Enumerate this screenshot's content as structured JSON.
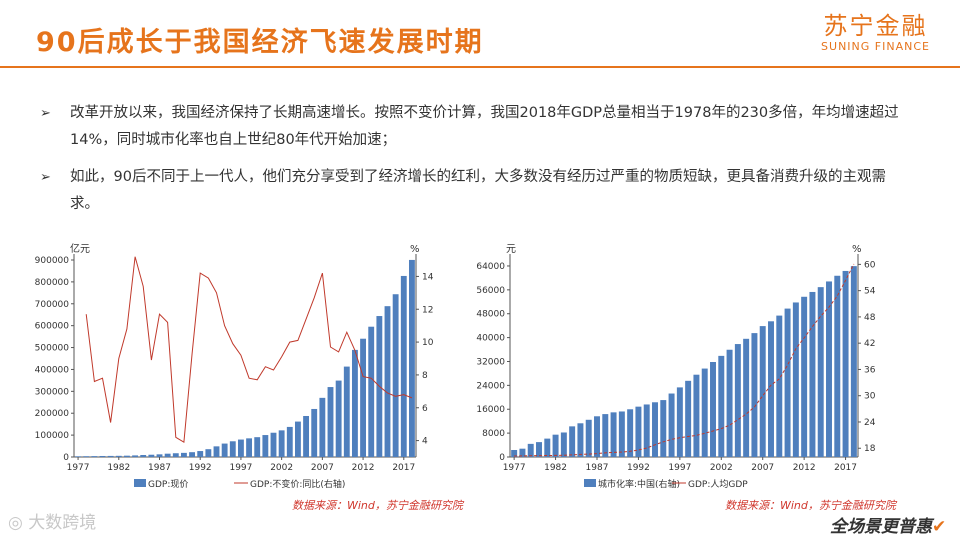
{
  "header": {
    "title": "90后成长于我国经济飞速发展时期",
    "logo_cn": "苏宁金融",
    "logo_en": "SUNING FINANCE"
  },
  "bullets": [
    {
      "marker": "➢",
      "text": "改革开放以来，我国经济保持了长期高速增长。按照不变价计算，我国2018年GDP总量相当于1978年的230多倍，年均增速超过14%，同时城市化率也自上世纪80年代开始加速；"
    },
    {
      "marker": "➢",
      "text": "如此，90后不同于上一代人，他们充分享受到了经济增长的红利，大多数没有经历过严重的物质短缺，更具备消费升级的主观需求。"
    }
  ],
  "colors": {
    "accent": "#e6741c",
    "bar": "#4f7fbd",
    "line": "#c0392b",
    "source": "#d0372d"
  },
  "chart_data": [
    {
      "type": "bar",
      "y_unit_left": "亿元",
      "y_unit_right": "%",
      "ylim_left": [
        0,
        900000
      ],
      "yticks_left": [
        0,
        100000,
        200000,
        300000,
        400000,
        500000,
        600000,
        700000,
        800000,
        900000
      ],
      "ylim_right": [
        3,
        15
      ],
      "yticks_right": [
        4,
        6,
        8,
        10,
        12,
        14
      ],
      "x": [
        1977,
        1978,
        1979,
        1980,
        1981,
        1982,
        1983,
        1984,
        1985,
        1986,
        1987,
        1988,
        1989,
        1990,
        1991,
        1992,
        1993,
        1994,
        1995,
        1996,
        1997,
        1998,
        1999,
        2000,
        2001,
        2002,
        2003,
        2004,
        2005,
        2006,
        2007,
        2008,
        2009,
        2010,
        2011,
        2012,
        2013,
        2014,
        2015,
        2016,
        2017,
        2018
      ],
      "xtick_labels": [
        "1977",
        "1982",
        "1987",
        "1992",
        "1997",
        "2002",
        "2007",
        "2012",
        "2017"
      ],
      "series": [
        {
          "name": "GDP:现价",
          "kind": "bar",
          "axis": "left",
          "values": [
            3250,
            3679,
            4101,
            4588,
            4936,
            5373,
            6021,
            7279,
            9099,
            10376,
            12175,
            15180,
            17180,
            18873,
            22006,
            27195,
            35673,
            48638,
            61340,
            71814,
            79715,
            85196,
            90564,
            100280,
            110863,
            121717,
            137422,
            161840,
            187319,
            219439,
            270232,
            319516,
            349081,
            413030,
            489301,
            540367,
            595244,
            643974,
            689052,
            743586,
            827122,
            900310
          ]
        },
        {
          "name": "GDP:不变价:同比(右轴)",
          "kind": "line",
          "axis": "right",
          "values": [
            null,
            11.7,
            7.6,
            7.8,
            5.1,
            9.0,
            10.8,
            15.2,
            13.4,
            8.9,
            11.7,
            11.2,
            4.2,
            3.9,
            9.3,
            14.2,
            13.9,
            13.0,
            11.0,
            9.9,
            9.2,
            7.8,
            7.7,
            8.5,
            8.3,
            9.1,
            10.0,
            10.1,
            11.4,
            12.7,
            14.2,
            9.7,
            9.4,
            10.6,
            9.5,
            7.9,
            7.8,
            7.3,
            6.9,
            6.7,
            6.8,
            6.6
          ]
        }
      ],
      "source": "数据来源：Wind，苏宁金融研究院"
    },
    {
      "type": "bar",
      "y_unit_left": "元",
      "y_unit_right": "%",
      "ylim_left": [
        0,
        66000
      ],
      "yticks_left": [
        0,
        8000,
        16000,
        24000,
        32000,
        40000,
        48000,
        56000,
        64000
      ],
      "ylim_right": [
        16,
        61
      ],
      "yticks_right": [
        18,
        24,
        30,
        36,
        42,
        48,
        54,
        60
      ],
      "x": [
        1977,
        1978,
        1979,
        1980,
        1981,
        1982,
        1983,
        1984,
        1985,
        1986,
        1987,
        1988,
        1989,
        1990,
        1991,
        1992,
        1993,
        1994,
        1995,
        1996,
        1997,
        1998,
        1999,
        2000,
        2001,
        2002,
        2003,
        2004,
        2005,
        2006,
        2007,
        2008,
        2009,
        2010,
        2011,
        2012,
        2013,
        2014,
        2015,
        2016,
        2017,
        2018
      ],
      "xtick_labels": [
        "1977",
        "1982",
        "1987",
        "1992",
        "1997",
        "2002",
        "2007",
        "2012",
        "2017"
      ],
      "series": [
        {
          "name": "城市化率:中国(右轴)",
          "kind": "bar",
          "axis": "right",
          "values": [
            17.6,
            17.9,
            19.0,
            19.4,
            20.2,
            21.1,
            21.6,
            23.0,
            23.7,
            24.5,
            25.3,
            25.8,
            26.2,
            26.4,
            26.9,
            27.5,
            28.0,
            28.5,
            29.0,
            30.5,
            31.9,
            33.4,
            34.8,
            36.2,
            37.7,
            39.1,
            40.5,
            41.8,
            43.0,
            44.3,
            45.9,
            47.0,
            48.3,
            49.9,
            51.3,
            52.6,
            53.7,
            54.8,
            56.1,
            57.4,
            58.5,
            59.6
          ]
        },
        {
          "name": "GDP:人均GDP",
          "kind": "line",
          "axis": "left",
          "values": [
            339,
            385,
            423,
            468,
            497,
            533,
            588,
            702,
            866,
            973,
            1123,
            1378,
            1536,
            1663,
            1912,
            2334,
            3027,
            4081,
            5091,
            5898,
            6481,
            6860,
            7229,
            7942,
            8717,
            9506,
            10666,
            12487,
            14368,
            16738,
            20494,
            24100,
            26180,
            30808,
            36302,
            39874,
            43684,
            47173,
            50237,
            53980,
            59201,
            64644
          ]
        }
      ],
      "source": "数据来源：Wind，苏宁金融研究院"
    }
  ],
  "watermarks": {
    "left": "大数跨境",
    "right": "全场景更普惠"
  }
}
